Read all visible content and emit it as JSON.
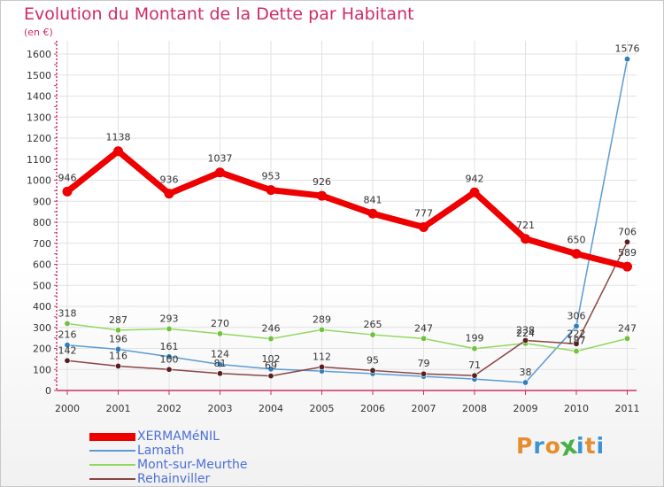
{
  "title": "Evolution du Montant de la Dette par Habitant",
  "unit_note": "(en €)",
  "brand": {
    "text": "Proxiti",
    "letter_colors": [
      "#e98c2d",
      "#3a94d4",
      "#e98c2d",
      "#49b049",
      "#3a94d4",
      "#e98c2d",
      "#3a94d4"
    ]
  },
  "colors": {
    "title": "#d02a67",
    "axis": "#cc3366",
    "grid": "#e2e2e2",
    "legend_text": "#4c6fd6"
  },
  "chart_data": {
    "type": "line",
    "title": "Evolution du Montant de la Dette par Habitant",
    "ylabel": "(en €)",
    "xlabel": "",
    "x": [
      "2000",
      "2001",
      "2002",
      "2003",
      "2004",
      "2005",
      "2006",
      "2007",
      "2008",
      "2009",
      "2010",
      "2011"
    ],
    "ylim": [
      0,
      1650
    ],
    "yticks": [
      0,
      100,
      200,
      300,
      400,
      500,
      600,
      700,
      800,
      900,
      1000,
      1100,
      1200,
      1300,
      1400,
      1500,
      1600
    ],
    "grid": true,
    "legend_position": "bottom-left",
    "series": [
      {
        "name": "XERMAMéNIL",
        "color": "#ee0000",
        "values": [
          946,
          1138,
          936,
          1037,
          953,
          926,
          841,
          777,
          942,
          721,
          650,
          589
        ],
        "labels": [
          "946",
          "1138",
          "936",
          "1037",
          "953",
          "926",
          "841",
          "777",
          "942",
          "721",
          "650",
          "589"
        ]
      },
      {
        "name": "Lamath",
        "color": "#5b9bd5",
        "marker": "#2f7fbd",
        "values": [
          216,
          196,
          161,
          124,
          102,
          92,
          80,
          67,
          54,
          38,
          306,
          1576
        ],
        "labels": [
          "216",
          "196",
          "161",
          "124",
          "102",
          "",
          "",
          "",
          "",
          "38",
          "306",
          "1576"
        ]
      },
      {
        "name": "Mont-sur-Meurthe",
        "color": "#90d860",
        "marker": "#6ec23c",
        "values": [
          318,
          287,
          293,
          270,
          246,
          289,
          265,
          247,
          199,
          224,
          187,
          247
        ],
        "labels": [
          "318",
          "287",
          "293",
          "270",
          "246",
          "289",
          "265",
          "247",
          "199",
          "224",
          "187",
          "247"
        ]
      },
      {
        "name": "Rehainviller",
        "color": "#8a4444",
        "marker": "#5a1e1e",
        "values": [
          142,
          116,
          100,
          81,
          69,
          112,
          95,
          79,
          71,
          238,
          222,
          706
        ],
        "labels": [
          "142",
          "116",
          "100",
          "81",
          "69",
          "112",
          "95",
          "79",
          "71",
          "238",
          "222",
          "706"
        ]
      }
    ]
  }
}
